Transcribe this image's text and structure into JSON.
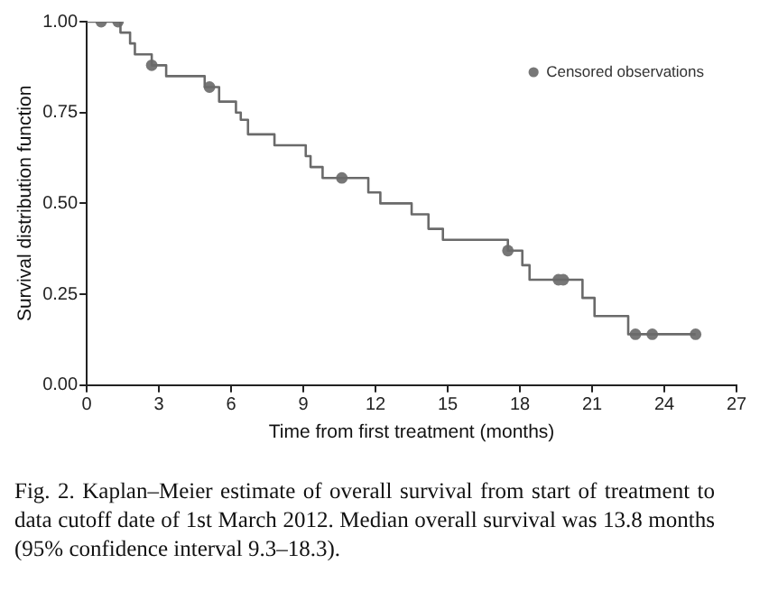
{
  "chart_data": {
    "type": "step",
    "xlabel": "Time from first treatment (months)",
    "ylabel": "Survival distribution function",
    "xlim": [
      0,
      27
    ],
    "xticks": [
      0,
      3,
      6,
      9,
      12,
      15,
      18,
      21,
      24,
      27
    ],
    "ylim": [
      0,
      1
    ],
    "yticks": [
      {
        "value": 0,
        "label": "0.00"
      },
      {
        "value": 0.25,
        "label": "0.25"
      },
      {
        "value": 0.5,
        "label": "0.50"
      },
      {
        "value": 0.75,
        "label": "0.75"
      },
      {
        "value": 1,
        "label": "1.00"
      }
    ],
    "grid": false,
    "legend": "top right",
    "series": [
      {
        "color": "#6a6a6a",
        "marker": "none",
        "x": [
          0,
          1.4,
          1.8,
          2.0,
          2.7,
          3.3,
          4.9,
          5.5,
          6.2,
          6.4,
          6.7,
          7.8,
          9.1,
          9.3,
          9.8,
          11.7,
          12.2,
          13.5,
          14.2,
          14.8,
          17.5,
          18.1,
          18.4,
          20.6,
          21.1,
          22.5,
          25.3
        ],
        "values": [
          1,
          0.97,
          0.94,
          0.91,
          0.88,
          0.85,
          0.82,
          0.78,
          0.75,
          0.73,
          0.69,
          0.66,
          0.63,
          0.6,
          0.57,
          0.53,
          0.5,
          0.47,
          0.43,
          0.4,
          0.37,
          0.33,
          0.29,
          0.24,
          0.19,
          0.14,
          0.14
        ]
      },
      {
        "type": "scatter",
        "name": "Censored observations",
        "color": "#777777",
        "marker": "circle",
        "x": [
          0.6,
          1.3,
          2.7,
          5.1,
          10.6,
          17.5,
          19.6,
          19.8,
          22.8,
          23.5,
          25.3
        ],
        "values": [
          1,
          1,
          0.88,
          0.82,
          0.57,
          0.37,
          0.29,
          0.29,
          0.14,
          0.14,
          0.14
        ]
      }
    ],
    "annotations": [
      "Fig. 2. Kaplan–Meier estimate of overall survival from start of treatment to data cutoff date of 1st March 2012. Median overall survival was 13.8 months (95% confidence interval 9.3–18.3)."
    ]
  }
}
